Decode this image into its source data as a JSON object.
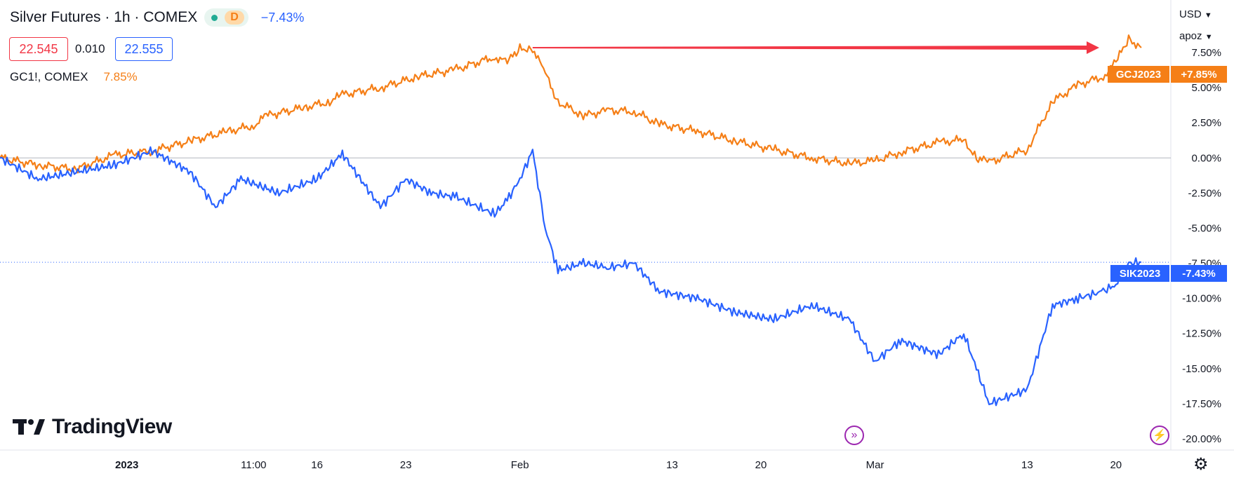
{
  "header": {
    "title": "Silver Futures · 1h · COMEX",
    "status_badge": "D",
    "change": "−7.43%",
    "bid": "22.545",
    "spread": "0.010",
    "ask": "22.555",
    "compare_symbol": "GC1!, COMEX",
    "compare_change": "7.85%"
  },
  "right_panel": {
    "currency": "USD",
    "scale_label": "apoz"
  },
  "branding": {
    "logo_text": "TradingView"
  },
  "colors": {
    "silver_line": "#2962ff",
    "gold_line": "#f57f17",
    "arrow": "#f23645",
    "bid": "#f23645",
    "ask": "#2962ff",
    "event_icon": "#9c27b0"
  },
  "icons": {
    "event_left": "fast-forward-icon",
    "event_right": "lightning-icon",
    "settings": "gear-icon"
  },
  "tags": {
    "gold": {
      "symbol": "GCJ2023",
      "value": "+7.85%"
    },
    "silver": {
      "symbol": "SIK2023",
      "value": "-7.43%"
    }
  },
  "chart_data": {
    "type": "line",
    "title": "Silver Futures · 1h · COMEX",
    "xlabel": "",
    "ylabel": "",
    "ylim": [
      -20.5,
      10.5
    ],
    "y_unit": "%",
    "y_ticks": [
      "7.50%",
      "5.00%",
      "2.50%",
      "0.00%",
      "-2.50%",
      "-5.00%",
      "-7.50%",
      "-10.00%",
      "-12.50%",
      "-15.00%",
      "-17.50%",
      "-20.00%"
    ],
    "y_tick_values": [
      7.5,
      5.0,
      2.5,
      0.0,
      -2.5,
      -5.0,
      -7.5,
      -10.0,
      -12.5,
      -15.0,
      -17.5,
      -20.0
    ],
    "x_ticks": [
      "2023",
      "11:00",
      "16",
      "23",
      "Feb",
      "13",
      "20",
      "Mar",
      "13",
      "20"
    ],
    "x_tick_dates": [
      "2023-01-01",
      "2023-01-11",
      "2023-01-16",
      "2023-01-23",
      "2023-02-01",
      "2023-02-13",
      "2023-02-20",
      "2023-03-01",
      "2023-03-13",
      "2023-03-20"
    ],
    "x_range": [
      "2022-12-22",
      "2023-03-23"
    ],
    "grid": false,
    "legend": "top-left",
    "series": [
      {
        "name": "GC1!, COMEX",
        "color": "#f57f17",
        "x": [
          "2022-12-22",
          "2022-12-25",
          "2022-12-28",
          "2022-12-31",
          "2023-01-03",
          "2023-01-06",
          "2023-01-09",
          "2023-01-11",
          "2023-01-12",
          "2023-01-15",
          "2023-01-17",
          "2023-01-18",
          "2023-01-21",
          "2023-01-24",
          "2023-01-27",
          "2023-01-30",
          "2023-01-31",
          "2023-02-01",
          "2023-02-02",
          "2023-02-03",
          "2023-02-04",
          "2023-02-06",
          "2023-02-08",
          "2023-02-10",
          "2023-02-12",
          "2023-02-15",
          "2023-02-18",
          "2023-02-21",
          "2023-02-24",
          "2023-02-27",
          "2023-03-01",
          "2023-03-03",
          "2023-03-06",
          "2023-03-08",
          "2023-03-09",
          "2023-03-10",
          "2023-03-13",
          "2023-03-15",
          "2023-03-17",
          "2023-03-19",
          "2023-03-20",
          "2023-03-21",
          "2023-03-22"
        ],
        "values": [
          0.0,
          -0.5,
          -0.8,
          0.2,
          0.5,
          1.2,
          1.9,
          2.3,
          3.0,
          3.6,
          4.0,
          4.5,
          5.0,
          5.8,
          6.3,
          7.2,
          6.8,
          7.8,
          7.8,
          6.0,
          4.0,
          3.0,
          3.4,
          3.3,
          2.4,
          1.9,
          1.2,
          0.6,
          0.0,
          -0.4,
          -0.2,
          0.4,
          1.1,
          1.3,
          0.0,
          -0.3,
          0.6,
          4.0,
          5.2,
          5.8,
          6.8,
          8.5,
          7.85
        ]
      },
      {
        "name": "SIK2023",
        "color": "#2962ff",
        "x": [
          "2022-12-22",
          "2022-12-25",
          "2022-12-28",
          "2022-12-31",
          "2023-01-03",
          "2023-01-06",
          "2023-01-08",
          "2023-01-10",
          "2023-01-13",
          "2023-01-16",
          "2023-01-18",
          "2023-01-21",
          "2023-01-23",
          "2023-01-25",
          "2023-01-27",
          "2023-01-30",
          "2023-01-31",
          "2023-02-01",
          "2023-02-02",
          "2023-02-03",
          "2023-02-04",
          "2023-02-06",
          "2023-02-08",
          "2023-02-10",
          "2023-02-12",
          "2023-02-15",
          "2023-02-18",
          "2023-02-21",
          "2023-02-24",
          "2023-02-27",
          "2023-03-01",
          "2023-03-03",
          "2023-03-06",
          "2023-03-08",
          "2023-03-09",
          "2023-03-10",
          "2023-03-13",
          "2023-03-15",
          "2023-03-17",
          "2023-03-19",
          "2023-03-20",
          "2023-03-21",
          "2023-03-22"
        ],
        "values": [
          0.0,
          -1.5,
          -1.0,
          -0.5,
          0.5,
          -1.0,
          -3.5,
          -1.5,
          -2.5,
          -1.5,
          0.3,
          -3.5,
          -1.5,
          -2.5,
          -2.8,
          -4.0,
          -3.0,
          -1.5,
          0.5,
          -5.0,
          -8.0,
          -7.5,
          -7.8,
          -7.5,
          -9.5,
          -10.0,
          -11.0,
          -11.5,
          -10.5,
          -11.5,
          -14.5,
          -13.0,
          -14.0,
          -12.5,
          -15.0,
          -17.5,
          -16.5,
          -10.5,
          -10.0,
          -9.5,
          -9.0,
          -7.5,
          -7.43
        ]
      }
    ]
  }
}
